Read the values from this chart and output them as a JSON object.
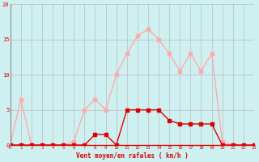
{
  "hours": [
    0,
    1,
    2,
    3,
    4,
    5,
    6,
    7,
    8,
    9,
    10,
    11,
    12,
    13,
    14,
    15,
    16,
    17,
    18,
    19,
    20,
    21,
    22,
    23
  ],
  "rafales": [
    0,
    6.5,
    0,
    0,
    0,
    0,
    0.5,
    5.0,
    6.5,
    5.0,
    10.0,
    13.0,
    15.5,
    16.5,
    15.0,
    13.0,
    10.5,
    13.0,
    10.5,
    13.0,
    0.5,
    0,
    0,
    0
  ],
  "vent_moyen": [
    0,
    0,
    0,
    0,
    0,
    0,
    0,
    0,
    1.5,
    1.5,
    0,
    5.0,
    5.0,
    5.0,
    5.0,
    3.5,
    3.0,
    3.0,
    3.0,
    3.0,
    0,
    0,
    0,
    0
  ],
  "color_rafales": "#ffaaaa",
  "color_moyen": "#dd0000",
  "bg_color": "#cff0f0",
  "grid_color": "#bbbbbb",
  "xlabel": "Vent moyen/en rafales ( km/h )",
  "ylim": [
    0,
    20
  ],
  "yticks": [
    0,
    5,
    10,
    15,
    20
  ],
  "marker_size": 2.5,
  "line_width": 1.0
}
